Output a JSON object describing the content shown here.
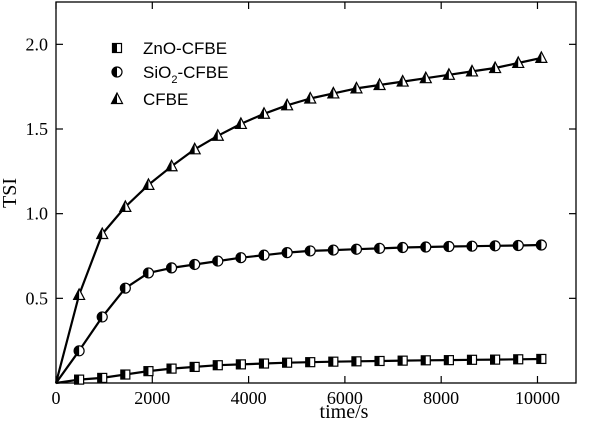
{
  "chart_data": {
    "type": "line",
    "title": "",
    "xlabel": "time/s",
    "ylabel": "TSI",
    "xlim": [
      0,
      10800
    ],
    "ylim": [
      0,
      2.25
    ],
    "xticks": [
      0,
      2000,
      4000,
      6000,
      8000,
      10000
    ],
    "yticks": [
      0.5,
      1.0,
      1.5,
      2.0
    ],
    "xtick_labels": [
      "0",
      "2000",
      "4000",
      "6000",
      "8000",
      "10000"
    ],
    "ytick_labels": [
      "0.5",
      "1.0",
      "1.5",
      "2.0"
    ],
    "grid": false,
    "legend_position": "top-left",
    "series": [
      {
        "name": "ZnO-CFBE",
        "marker": "square-half",
        "x": [
          0,
          480,
          960,
          1440,
          1920,
          2400,
          2880,
          3360,
          3840,
          4320,
          4800,
          5280,
          5760,
          6240,
          6720,
          7200,
          7680,
          8160,
          8640,
          9120,
          9600,
          10080
        ],
        "y": [
          0,
          0.02,
          0.03,
          0.05,
          0.07,
          0.085,
          0.095,
          0.105,
          0.11,
          0.115,
          0.12,
          0.123,
          0.126,
          0.128,
          0.13,
          0.132,
          0.134,
          0.135,
          0.137,
          0.138,
          0.14,
          0.142
        ]
      },
      {
        "name": "SiO2-CFBE",
        "legend_main": "SiO",
        "legend_sub": "2",
        "legend_rest": "-CFBE",
        "marker": "circle-half",
        "x": [
          0,
          480,
          960,
          1440,
          1920,
          2400,
          2880,
          3360,
          3840,
          4320,
          4800,
          5280,
          5760,
          6240,
          6720,
          7200,
          7680,
          8160,
          8640,
          9120,
          9600,
          10080
        ],
        "y": [
          0,
          0.19,
          0.39,
          0.56,
          0.65,
          0.68,
          0.7,
          0.72,
          0.74,
          0.755,
          0.77,
          0.78,
          0.785,
          0.79,
          0.795,
          0.8,
          0.803,
          0.806,
          0.808,
          0.81,
          0.812,
          0.815
        ]
      },
      {
        "name": "CFBE",
        "marker": "triangle-half",
        "x": [
          0,
          480,
          960,
          1440,
          1920,
          2400,
          2880,
          3360,
          3840,
          4320,
          4800,
          5280,
          5760,
          6240,
          6720,
          7200,
          7680,
          8160,
          8640,
          9120,
          9600,
          10080
        ],
        "y": [
          0,
          0.52,
          0.88,
          1.04,
          1.17,
          1.28,
          1.38,
          1.46,
          1.53,
          1.59,
          1.64,
          1.68,
          1.71,
          1.74,
          1.76,
          1.78,
          1.8,
          1.82,
          1.84,
          1.86,
          1.89,
          1.92
        ]
      }
    ]
  }
}
